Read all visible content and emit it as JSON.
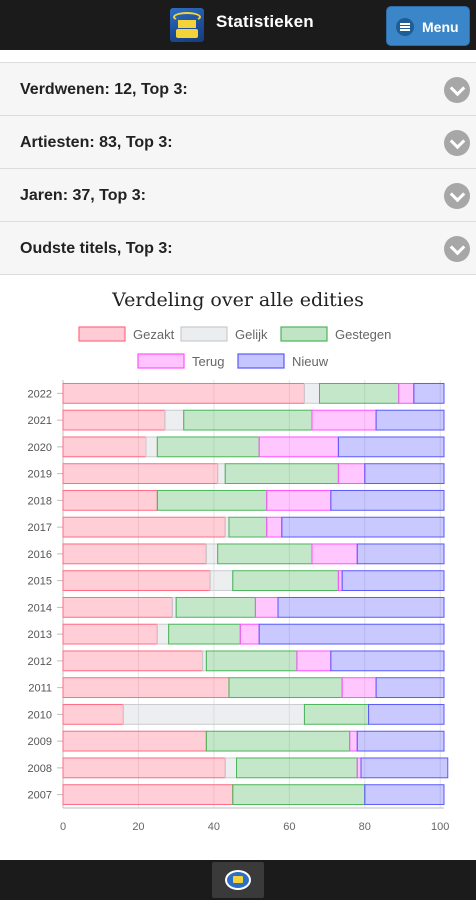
{
  "header": {
    "title": "Statistieken",
    "menu_label": "Menu"
  },
  "accordion": [
    {
      "label": "Verdwenen: 12, Top 3:"
    },
    {
      "label": "Artiesten: 83, Top 3:"
    },
    {
      "label": "Jaren: 37, Top 3:"
    },
    {
      "label": "Oudste titels, Top 3:"
    }
  ],
  "chart_data": {
    "type": "bar",
    "orientation": "horizontal",
    "stacked": true,
    "title": "Verdeling over alle edities",
    "categories": [
      "2022",
      "2021",
      "2020",
      "2019",
      "2018",
      "2017",
      "2016",
      "2015",
      "2014",
      "2013",
      "2012",
      "2011",
      "2010",
      "2009",
      "2008",
      "2007"
    ],
    "series": [
      {
        "name": "Gezakt",
        "color": "#ff6b84",
        "values": [
          64,
          27,
          22,
          41,
          25,
          43,
          38,
          39,
          29,
          25,
          37,
          44,
          16,
          38,
          43,
          45
        ]
      },
      {
        "name": "Gelijk",
        "color": "#c9cbcf",
        "values": [
          4,
          5,
          3,
          2,
          0,
          1,
          3,
          6,
          1,
          3,
          1,
          0,
          48,
          0,
          3,
          0
        ]
      },
      {
        "name": "Gestegen",
        "color": "#4bb55a",
        "values": [
          21,
          34,
          27,
          30,
          29,
          10,
          25,
          28,
          21,
          19,
          24,
          30,
          17,
          38,
          32,
          35
        ]
      },
      {
        "name": "Terug",
        "color": "#ff52ff",
        "values": [
          4,
          17,
          21,
          7,
          17,
          4,
          12,
          1,
          6,
          5,
          9,
          9,
          0,
          2,
          1,
          0
        ]
      },
      {
        "name": "Nieuw",
        "color": "#5a5aff",
        "values": [
          8,
          18,
          28,
          21,
          30,
          43,
          23,
          27,
          44,
          49,
          30,
          18,
          20,
          23,
          23,
          21
        ]
      }
    ],
    "x_ticks": [
      "0",
      "20",
      "40",
      "60",
      "80",
      "100"
    ],
    "xlim": [
      0,
      101
    ],
    "grid": true,
    "legend_position": "top"
  }
}
